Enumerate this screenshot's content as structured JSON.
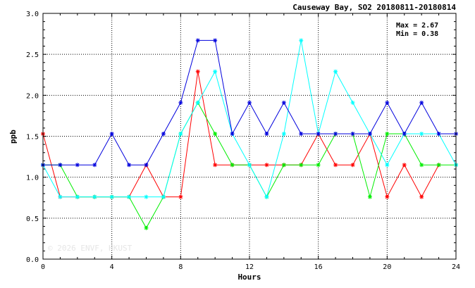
{
  "chart_data": {
    "type": "line",
    "title": "Causeway Bay, SO2 20180811-20180814",
    "xlabel": "Hours",
    "ylabel": "ppb",
    "xlim": [
      0,
      24
    ],
    "ylim": [
      0,
      3.0
    ],
    "x_ticks": [
      "0",
      "4",
      "8",
      "12",
      "16",
      "20",
      "24"
    ],
    "y_ticks": [
      "0.0",
      "0.5",
      "1.0",
      "1.5",
      "2.0",
      "2.5",
      "3.0"
    ],
    "grid": true,
    "annotations": [
      "Max = 2.67",
      "Min = 0.38"
    ],
    "watermark": "© 2026  ENVF, HKUST",
    "x": [
      0,
      1,
      2,
      3,
      4,
      5,
      6,
      7,
      8,
      9,
      10,
      11,
      12,
      13,
      14,
      15,
      16,
      17,
      18,
      19,
      20,
      21,
      22,
      23,
      24
    ],
    "series": [
      {
        "color": "#ff0000",
        "values": [
          1.53,
          0.76,
          0.76,
          0.76,
          0.76,
          0.76,
          1.15,
          0.76,
          0.76,
          2.29,
          1.15,
          1.15,
          1.15,
          1.15,
          1.15,
          1.15,
          1.53,
          1.15,
          1.15,
          1.53,
          0.76,
          1.15,
          0.76,
          1.15,
          null
        ]
      },
      {
        "color": "#00ee00",
        "values": [
          1.15,
          1.15,
          0.76,
          0.76,
          0.76,
          0.76,
          0.38,
          0.76,
          1.53,
          1.91,
          1.53,
          1.15,
          1.15,
          0.76,
          1.15,
          1.15,
          1.15,
          1.53,
          1.53,
          0.76,
          1.53,
          1.53,
          1.15,
          1.15,
          1.15
        ]
      },
      {
        "color": "#00ffff",
        "values": [
          1.15,
          0.76,
          0.76,
          0.76,
          0.76,
          0.76,
          0.76,
          0.76,
          1.53,
          1.91,
          2.29,
          1.53,
          1.15,
          0.76,
          1.53,
          2.67,
          1.53,
          2.29,
          1.91,
          1.53,
          1.15,
          1.53,
          1.53,
          1.53,
          1.15
        ]
      },
      {
        "color": "#0000dd",
        "values": [
          1.15,
          1.15,
          1.15,
          1.15,
          1.53,
          1.15,
          1.15,
          1.53,
          1.91,
          2.67,
          2.67,
          1.53,
          1.91,
          1.53,
          1.91,
          1.53,
          1.53,
          1.53,
          1.53,
          1.53,
          1.91,
          1.53,
          1.91,
          1.53,
          1.53
        ]
      }
    ]
  }
}
